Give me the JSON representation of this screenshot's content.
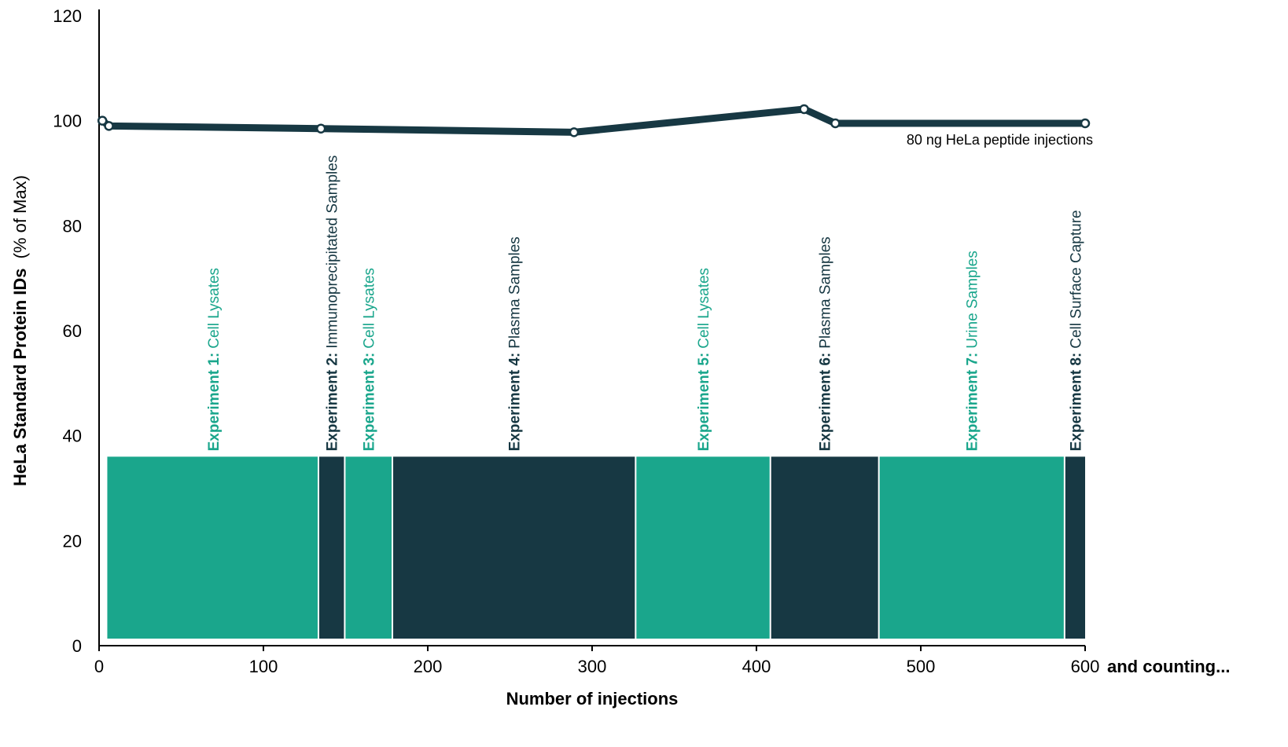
{
  "chart_data": {
    "type": "line",
    "ylabel": "HeLa Standard Protein IDs",
    "ylabel_suffix": "(% of Max)",
    "xlabel": "Number of injections",
    "x_suffix": "and counting...",
    "xlim": [
      0,
      600
    ],
    "ylim": [
      0,
      120
    ],
    "x_ticks": [
      "0",
      "100",
      "200",
      "300",
      "400",
      "500",
      "600"
    ],
    "y_ticks": [
      "0",
      "20",
      "40",
      "60",
      "80",
      "100",
      "120"
    ],
    "grid": false,
    "series": [
      {
        "name": "80 ng HeLa peptide injections",
        "x": [
          2,
          6,
          135,
          289,
          429,
          448,
          600
        ],
        "y": [
          100,
          99,
          98.5,
          97.8,
          102.2,
          99.5,
          99.5
        ]
      }
    ],
    "experiments": [
      {
        "label": "Experiment 1:",
        "sample": "Cell Lysates",
        "start": 5,
        "end": 133,
        "color": "#1aa68c"
      },
      {
        "label": "Experiment 2:",
        "sample": "Immunoprecipitated Samples",
        "start": 133,
        "end": 149,
        "color": "#173843"
      },
      {
        "label": "Experiment 3:",
        "sample": "Cell Lysates",
        "start": 149,
        "end": 178,
        "color": "#1aa68c"
      },
      {
        "label": "Experiment 4:",
        "sample": "Plasma Samples",
        "start": 178,
        "end": 326,
        "color": "#173843"
      },
      {
        "label": "Experiment 5:",
        "sample": "Cell Lysates",
        "start": 326,
        "end": 408,
        "color": "#1aa68c"
      },
      {
        "label": "Experiment 6:",
        "sample": "Plasma Samples",
        "start": 408,
        "end": 474,
        "color": "#173843"
      },
      {
        "label": "Experiment 7:",
        "sample": "Urine Samples",
        "start": 474,
        "end": 587,
        "color": "#1aa68c"
      },
      {
        "label": "Experiment 8:",
        "sample": "Cell Surface Capture",
        "start": 587,
        "end": 600,
        "color": "#173843"
      }
    ],
    "bar_top": 36,
    "line_color": "#173843"
  }
}
